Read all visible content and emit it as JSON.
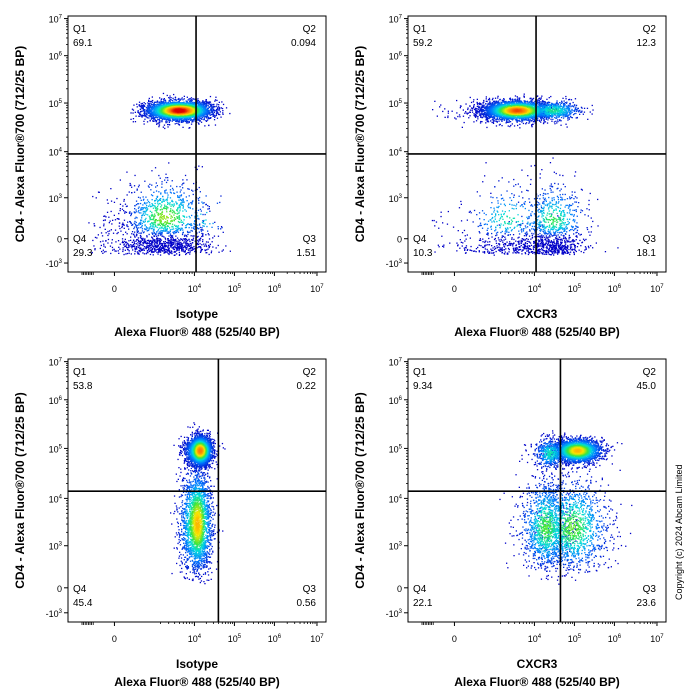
{
  "copyright": "Copyright (c) 2024 Abcam Limited",
  "chart_data": [
    {
      "type": "scatter",
      "subtype": "flow-cytometry-density",
      "xlabel_marker": "Isotype",
      "xlabel": "Alexa Fluor® 488  (525/40 BP)",
      "ylabel": "CD4 - Alexa Fluor®700  (712/25 BP)",
      "x_scale": "biexponential",
      "y_scale": "biexponential",
      "x_ticks": [
        "0",
        "10^4",
        "10^5",
        "10^6",
        "10^7"
      ],
      "y_ticks": [
        "-10^3",
        "0",
        "10^3",
        "10^4",
        "10^5",
        "10^6",
        "10^7"
      ],
      "gate": {
        "x": 11000,
        "y": 9000
      },
      "quadrants": [
        {
          "name": "Q1",
          "value": "69.1"
        },
        {
          "name": "Q2",
          "value": "0.094"
        },
        {
          "name": "Q3",
          "value": "1.51"
        },
        {
          "name": "Q4",
          "value": "29.3"
        }
      ],
      "populations": [
        {
          "x": 5000,
          "y": 70000,
          "sx": 0.35,
          "sy": 0.1,
          "weight": 0.69
        },
        {
          "x": 2500,
          "y": 300,
          "sx": 0.45,
          "sy": 0.45,
          "weight": 0.29
        },
        {
          "x": 18000,
          "y": 300,
          "sx": 0.3,
          "sy": 0.4,
          "weight": 0.015
        }
      ]
    },
    {
      "type": "scatter",
      "subtype": "flow-cytometry-density",
      "xlabel_marker": "CXCR3",
      "xlabel": "Alexa Fluor® 488  (525/40 BP)",
      "ylabel": "CD4 - Alexa Fluor®700  (712/25 BP)",
      "x_scale": "biexponential",
      "y_scale": "biexponential",
      "x_ticks": [
        "0",
        "10^4",
        "10^5",
        "10^6",
        "10^7"
      ],
      "y_ticks": [
        "-10^3",
        "0",
        "10^3",
        "10^4",
        "10^5",
        "10^6",
        "10^7"
      ],
      "gate": {
        "x": 11000,
        "y": 9000
      },
      "quadrants": [
        {
          "name": "Q1",
          "value": "59.2"
        },
        {
          "name": "Q2",
          "value": "12.3"
        },
        {
          "name": "Q3",
          "value": "18.1"
        },
        {
          "name": "Q4",
          "value": "10.3"
        }
      ],
      "populations": [
        {
          "x": 4500,
          "y": 70000,
          "sx": 0.35,
          "sy": 0.1,
          "weight": 0.59
        },
        {
          "x": 30000,
          "y": 70000,
          "sx": 0.35,
          "sy": 0.1,
          "weight": 0.12
        },
        {
          "x": 3000,
          "y": 250,
          "sx": 0.45,
          "sy": 0.45,
          "weight": 0.1
        },
        {
          "x": 30000,
          "y": 250,
          "sx": 0.4,
          "sy": 0.45,
          "weight": 0.18
        }
      ]
    },
    {
      "type": "scatter",
      "subtype": "flow-cytometry-density",
      "xlabel_marker": "Isotype",
      "xlabel": "Alexa Fluor® 488  (525/40 BP)",
      "ylabel": "CD4 - Alexa Fluor®700  (712/25 BP)",
      "x_scale": "biexponential",
      "y_scale": "biexponential",
      "x_ticks": [
        "0",
        "10^4",
        "10^5",
        "10^6",
        "10^7"
      ],
      "y_ticks": [
        "-10^3",
        "0",
        "10^3",
        "10^4",
        "10^5",
        "10^6",
        "10^7"
      ],
      "gate": {
        "x": 40000,
        "y": 14000
      },
      "quadrants": [
        {
          "name": "Q1",
          "value": "53.8"
        },
        {
          "name": "Q2",
          "value": "0.22"
        },
        {
          "name": "Q3",
          "value": "0.56"
        },
        {
          "name": "Q4",
          "value": "45.4"
        }
      ],
      "populations": [
        {
          "x": 14000,
          "y": 90000,
          "sx": 0.15,
          "sy": 0.15,
          "weight": 0.54
        },
        {
          "x": 12000,
          "y": 3000,
          "sx": 0.18,
          "sy": 0.55,
          "weight": 0.45
        }
      ]
    },
    {
      "type": "scatter",
      "subtype": "flow-cytometry-density",
      "xlabel_marker": "CXCR3",
      "xlabel": "Alexa Fluor® 488  (525/40 BP)",
      "ylabel": "CD4 - Alexa Fluor®700  (712/25 BP)",
      "x_scale": "biexponential",
      "y_scale": "biexponential",
      "x_ticks": [
        "0",
        "10^4",
        "10^5",
        "10^6",
        "10^7"
      ],
      "y_ticks": [
        "-10^3",
        "0",
        "10^3",
        "10^4",
        "10^5",
        "10^6",
        "10^7"
      ],
      "gate": {
        "x": 45000,
        "y": 14000
      },
      "quadrants": [
        {
          "name": "Q1",
          "value": "9.34"
        },
        {
          "name": "Q2",
          "value": "45.0"
        },
        {
          "name": "Q3",
          "value": "23.6"
        },
        {
          "name": "Q4",
          "value": "22.1"
        }
      ],
      "populations": [
        {
          "x": 120000,
          "y": 90000,
          "sx": 0.3,
          "sy": 0.12,
          "weight": 0.45
        },
        {
          "x": 25000,
          "y": 80000,
          "sx": 0.2,
          "sy": 0.15,
          "weight": 0.09
        },
        {
          "x": 90000,
          "y": 2500,
          "sx": 0.45,
          "sy": 0.5,
          "weight": 0.24
        },
        {
          "x": 20000,
          "y": 2500,
          "sx": 0.3,
          "sy": 0.5,
          "weight": 0.22
        }
      ]
    }
  ]
}
